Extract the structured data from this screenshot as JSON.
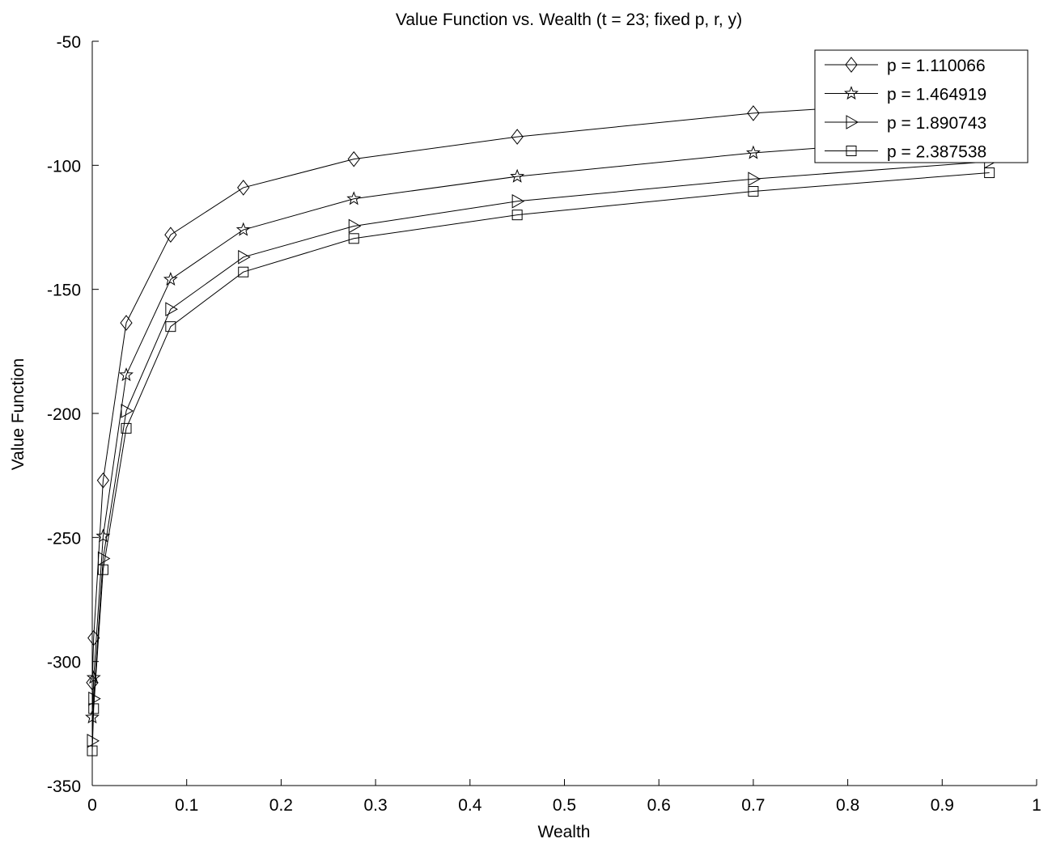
{
  "chart_data": {
    "type": "line",
    "title": "Value Function vs. Wealth (t = 23; fixed p, r, y)",
    "xlabel": "Wealth",
    "ylabel": "Value Function",
    "xlim": [
      0,
      1
    ],
    "ylim": [
      -350,
      -50
    ],
    "xticks": [
      0,
      0.1,
      0.2,
      0.3,
      0.4,
      0.5,
      0.6,
      0.7,
      0.8,
      0.9,
      1
    ],
    "xtick_labels": [
      "0",
      "0.1",
      "0.2",
      "0.3",
      "0.4",
      "0.5",
      "0.6",
      "0.7",
      "0.8",
      "0.9",
      "1"
    ],
    "yticks": [
      -350,
      -300,
      -250,
      -200,
      -150,
      -100,
      -50
    ],
    "ytick_labels": [
      "-350",
      "-300",
      "-250",
      "-200",
      "-150",
      "-100",
      "-50"
    ],
    "grid": false,
    "legend_position": "top-right",
    "x": [
      0,
      0.0015,
      0.0115,
      0.036,
      0.083,
      0.16,
      0.277,
      0.45,
      0.7,
      0.95
    ],
    "series": [
      {
        "name": "p = 1.110066",
        "marker": "diamond",
        "values": [
          -308.5,
          -290.5,
          -227,
          -163.5,
          -128,
          -109,
          -97.5,
          -88.5,
          -79,
          -73
        ]
      },
      {
        "name": "p = 1.464919",
        "marker": "star",
        "values": [
          -322.5,
          -306.5,
          -249.5,
          -184.5,
          -146,
          -126,
          -113.5,
          -104.5,
          -95,
          -88
        ]
      },
      {
        "name": "p = 1.890743",
        "marker": "triangle-right",
        "values": [
          -332,
          -315,
          -258.5,
          -199,
          -158,
          -137,
          -124.5,
          -114.5,
          -105.5,
          -98.5
        ]
      },
      {
        "name": "p = 2.387538",
        "marker": "square",
        "values": [
          -336,
          -319,
          -263,
          -206,
          -165,
          -143,
          -129.5,
          -120,
          -110.5,
          -103
        ]
      }
    ]
  }
}
